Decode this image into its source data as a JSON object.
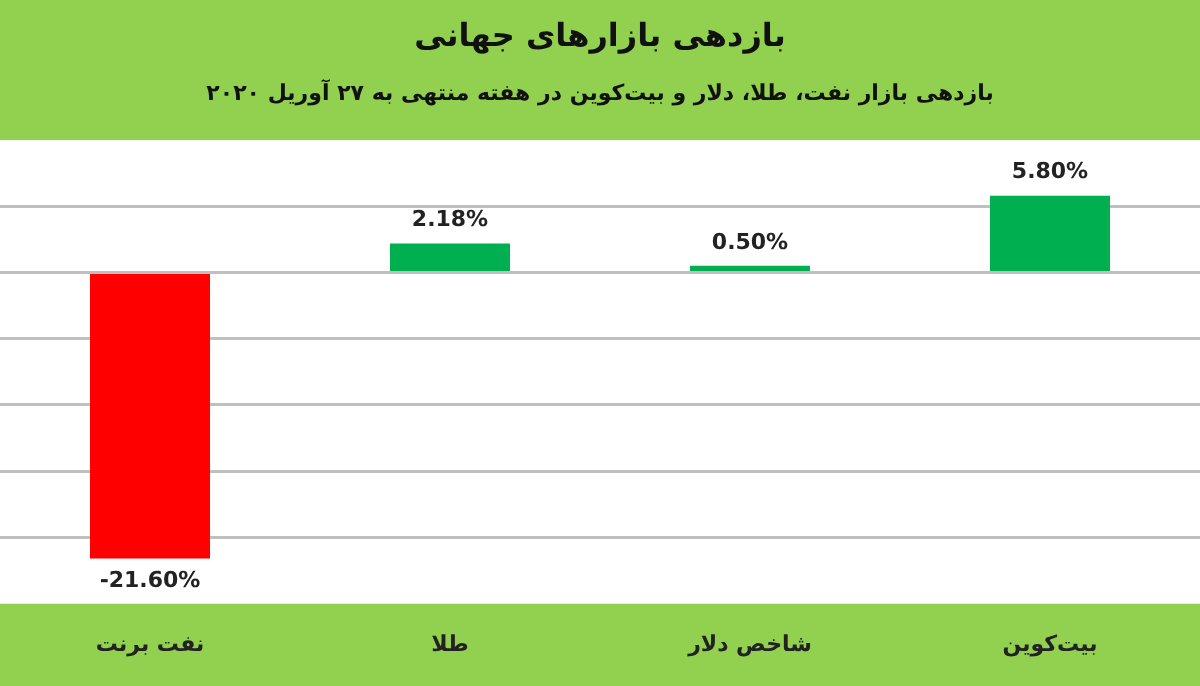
{
  "chart_data": {
    "type": "bar",
    "title": "بازدهی بازارهای جهانی",
    "subtitle": "بازدهی بازار نفت، طلا، دلار و بیت‌کوین در هفته منتهی به ۲۷ آوریل ۲۰۲۰",
    "categories": [
      "نفت برنت",
      "طلا",
      "شاخص دلار",
      "بیت‌کوین"
    ],
    "values": [
      -21.6,
      2.18,
      0.5,
      5.8
    ],
    "colors": [
      "#ff0000",
      "#00b050",
      "#00b050",
      "#00b050"
    ],
    "value_labels": [
      "-21.60%",
      "2.18%",
      "0.50%",
      "5.80%"
    ],
    "ylim": [
      -25,
      10
    ],
    "yticks": [
      {
        "value": -20,
        "label": null
      },
      {
        "value": -15,
        "label": null
      },
      {
        "value": -10,
        "label": null
      },
      {
        "value": -5,
        "label": null
      },
      {
        "value": 0,
        "label": null
      },
      {
        "value": 5,
        "label": null
      }
    ],
    "grid": "y",
    "tick_labels": "x"
  }
}
